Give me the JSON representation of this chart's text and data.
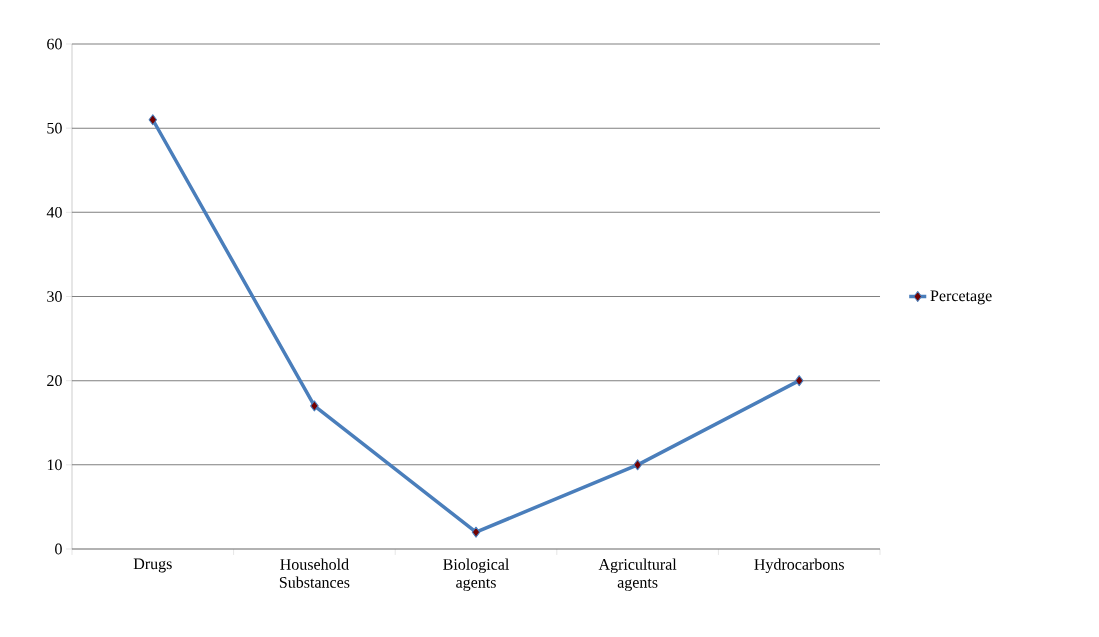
{
  "chart_data": {
    "type": "line",
    "categories": [
      "Drugs",
      "Household Substances",
      "Biological agents",
      "Agricultural agents",
      "Hydrocarbons"
    ],
    "series": [
      {
        "name": "Percetage",
        "color": "#4a7ebb",
        "values": [
          51,
          17,
          2,
          10,
          20
        ]
      }
    ],
    "ylim": [
      0,
      60
    ],
    "yticks": [
      0,
      10,
      20,
      30,
      40,
      50,
      60
    ],
    "grid": "y",
    "legend": "right",
    "marker": "diamond",
    "line_style": "solid"
  }
}
